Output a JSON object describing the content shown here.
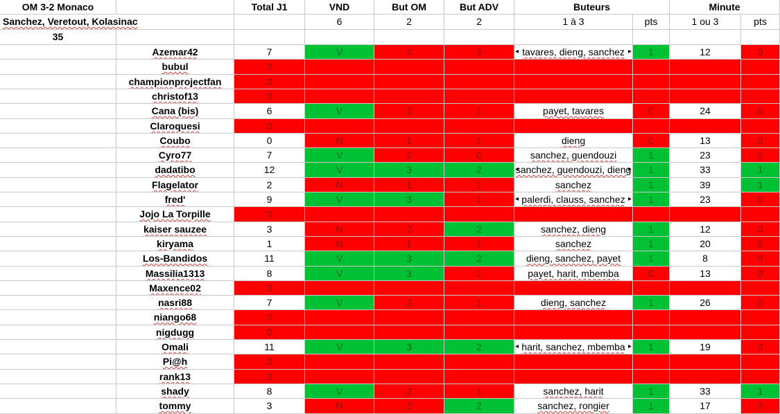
{
  "header": {
    "match": "OM 3-2 Monaco",
    "scorers": "Sanchez, Veretout, Kolasinac",
    "minute_value": "35",
    "columns": {
      "total": "Total J1",
      "vnd": "VND",
      "but_om": "But OM",
      "but_adv": "But ADV",
      "buteurs": "Buteurs",
      "minute": "Minute"
    },
    "points": {
      "vnd": "6",
      "but_om": "2",
      "but_adv": "2",
      "buteurs_range": "1 à 3",
      "buteurs_pts": "pts",
      "minute_range": "1 ou 3",
      "minute_pts": "pts"
    }
  },
  "colors": {
    "green": "#00c033",
    "red": "#ff0000",
    "grid": "#c8c8c8"
  },
  "rows": [
    {
      "name": "Azemar42",
      "total": "7",
      "vnd": "V",
      "om": "4",
      "adv": "3",
      "buteurs": "tavares, dieng, sanchez",
      "bpts": "1",
      "minute": "12",
      "mpts": "0",
      "c": [
        "g",
        "r",
        "r",
        "n",
        "g",
        "n",
        "r"
      ],
      "tl": true,
      "tr": true
    },
    {
      "name": "bubul",
      "total": "0",
      "empty": true
    },
    {
      "name": "championprojectfan",
      "total": "0",
      "empty": true
    },
    {
      "name": "christof13",
      "total": "0",
      "empty": true
    },
    {
      "name": "Cana (bis)",
      "total": "6",
      "vnd": "V",
      "om": "2",
      "adv": "1",
      "buteurs": "payet, tavares",
      "bpts": "0",
      "minute": "24",
      "mpts": "0",
      "c": [
        "g",
        "r",
        "r",
        "n",
        "r",
        "n",
        "r"
      ]
    },
    {
      "name": "Claroquesi",
      "total": "0",
      "empty": true
    },
    {
      "name": "Coubo",
      "total": "0",
      "vnd": "N",
      "om": "1",
      "adv": "1",
      "buteurs": "dieng",
      "bpts": "0",
      "minute": "13",
      "mpts": "0",
      "c": [
        "r",
        "r",
        "r",
        "n",
        "r",
        "n",
        "r"
      ]
    },
    {
      "name": "Cyro77",
      "total": "7",
      "vnd": "V",
      "om": "2",
      "adv": "0",
      "buteurs": "sanchez, guendouzi",
      "bpts": "1",
      "minute": "23",
      "mpts": "0",
      "c": [
        "g",
        "r",
        "r",
        "n",
        "g",
        "n",
        "r"
      ]
    },
    {
      "name": "dadatibo",
      "total": "12",
      "vnd": "V",
      "om": "3",
      "adv": "2",
      "buteurs": "sanchez, guendouzi, dieng",
      "bpts": "1",
      "minute": "33",
      "mpts": "1",
      "c": [
        "g",
        "g",
        "g",
        "n",
        "g",
        "n",
        "g"
      ],
      "tl": true,
      "tr": true
    },
    {
      "name": "Flagelator",
      "total": "2",
      "vnd": "N",
      "om": "1",
      "adv": "1",
      "buteurs": "sanchez",
      "bpts": "1",
      "minute": "39",
      "mpts": "1",
      "c": [
        "r",
        "r",
        "r",
        "n",
        "g",
        "n",
        "g"
      ]
    },
    {
      "name": "fred'",
      "total": "9",
      "vnd": "V",
      "om": "3",
      "adv": "1",
      "buteurs": "palerdi, clauss, sanchez",
      "bpts": "1",
      "minute": "23",
      "mpts": "0",
      "c": [
        "g",
        "g",
        "r",
        "n",
        "g",
        "n",
        "r"
      ],
      "tl": true,
      "tr": true
    },
    {
      "name": "Jojo La Torpille",
      "total": "0",
      "empty": true
    },
    {
      "name": "kaiser sauzee",
      "total": "3",
      "vnd": "N",
      "om": "2",
      "adv": "2",
      "buteurs": "sanchez, dieng",
      "bpts": "1",
      "minute": "12",
      "mpts": "0",
      "c": [
        "r",
        "r",
        "g",
        "n",
        "g",
        "n",
        "r"
      ]
    },
    {
      "name": "kiryama",
      "total": "1",
      "vnd": "N",
      "om": "1",
      "adv": "1",
      "buteurs": "sanchez",
      "bpts": "1",
      "minute": "20",
      "mpts": "0",
      "c": [
        "r",
        "r",
        "r",
        "n",
        "g",
        "n",
        "r"
      ]
    },
    {
      "name": "Los-Bandidos",
      "total": "11",
      "vnd": "V",
      "om": "3",
      "adv": "2",
      "buteurs": "dieng, sanchez, payet",
      "bpts": "1",
      "minute": "8",
      "mpts": "0",
      "c": [
        "g",
        "g",
        "g",
        "n",
        "g",
        "n",
        "r"
      ]
    },
    {
      "name": "Massilia1313",
      "total": "8",
      "vnd": "V",
      "om": "3",
      "adv": "1",
      "buteurs": "payet, harit, mbemba",
      "bpts": "0",
      "minute": "13",
      "mpts": "0",
      "c": [
        "g",
        "g",
        "r",
        "n",
        "r",
        "n",
        "r"
      ]
    },
    {
      "name": "Maxence02",
      "total": "0",
      "empty": true
    },
    {
      "name": "nasri88",
      "total": "7",
      "vnd": "V",
      "om": "2",
      "adv": "1",
      "buteurs": "dieng, sanchez",
      "bpts": "1",
      "minute": "26",
      "mpts": "0",
      "c": [
        "g",
        "r",
        "r",
        "n",
        "g",
        "n",
        "r"
      ]
    },
    {
      "name": "niango68",
      "total": "0",
      "empty": true
    },
    {
      "name": "nigdugg",
      "total": "0",
      "empty": true
    },
    {
      "name": "Omali",
      "total": "11",
      "vnd": "V",
      "om": "3",
      "adv": "2",
      "buteurs": "harit, sanchez, mbemba",
      "bpts": "1",
      "minute": "19",
      "mpts": "0",
      "c": [
        "g",
        "g",
        "g",
        "n",
        "g",
        "n",
        "r"
      ],
      "tl": true,
      "tr": true
    },
    {
      "name": "Pi@h",
      "total": "0",
      "empty": true
    },
    {
      "name": "rank13",
      "total": "0",
      "empty": true
    },
    {
      "name": "shady",
      "total": "8",
      "vnd": "V",
      "om": "2",
      "adv": "1",
      "buteurs": "sanchez, harit",
      "bpts": "1",
      "minute": "33",
      "mpts": "1",
      "c": [
        "g",
        "r",
        "r",
        "n",
        "g",
        "n",
        "g"
      ]
    },
    {
      "name": "tommy",
      "total": "3",
      "vnd": "N",
      "om": "2",
      "adv": "2",
      "buteurs": "sanchez, rongier",
      "bpts": "1",
      "minute": "17",
      "mpts": "0",
      "c": [
        "r",
        "r",
        "g",
        "n",
        "g",
        "n",
        "r"
      ]
    }
  ]
}
